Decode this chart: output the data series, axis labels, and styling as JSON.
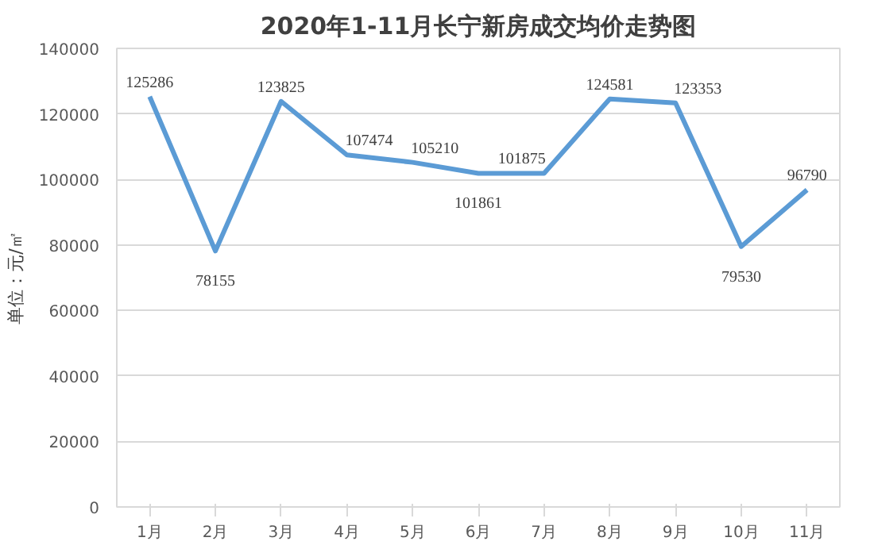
{
  "chart_data": {
    "type": "line",
    "title": "2020年1-11月长宁新房成交均价走势图",
    "ylabel": "单位：元/㎡",
    "categories": [
      "1月",
      "2月",
      "3月",
      "4月",
      "5月",
      "6月",
      "7月",
      "8月",
      "9月",
      "10月",
      "11月"
    ],
    "series": [
      {
        "color": "#5b9bd5",
        "values": [
          125286,
          78155,
          123825,
          107474,
          105210,
          101861,
          101875,
          124581,
          123353,
          79530,
          96790
        ]
      }
    ],
    "ylim": [
      0,
      140000
    ],
    "yticks": [
      0,
      20000,
      40000,
      60000,
      80000,
      100000,
      120000,
      140000
    ],
    "grid": "y",
    "data_labels": true,
    "marker": "none",
    "line_style": "solid"
  }
}
